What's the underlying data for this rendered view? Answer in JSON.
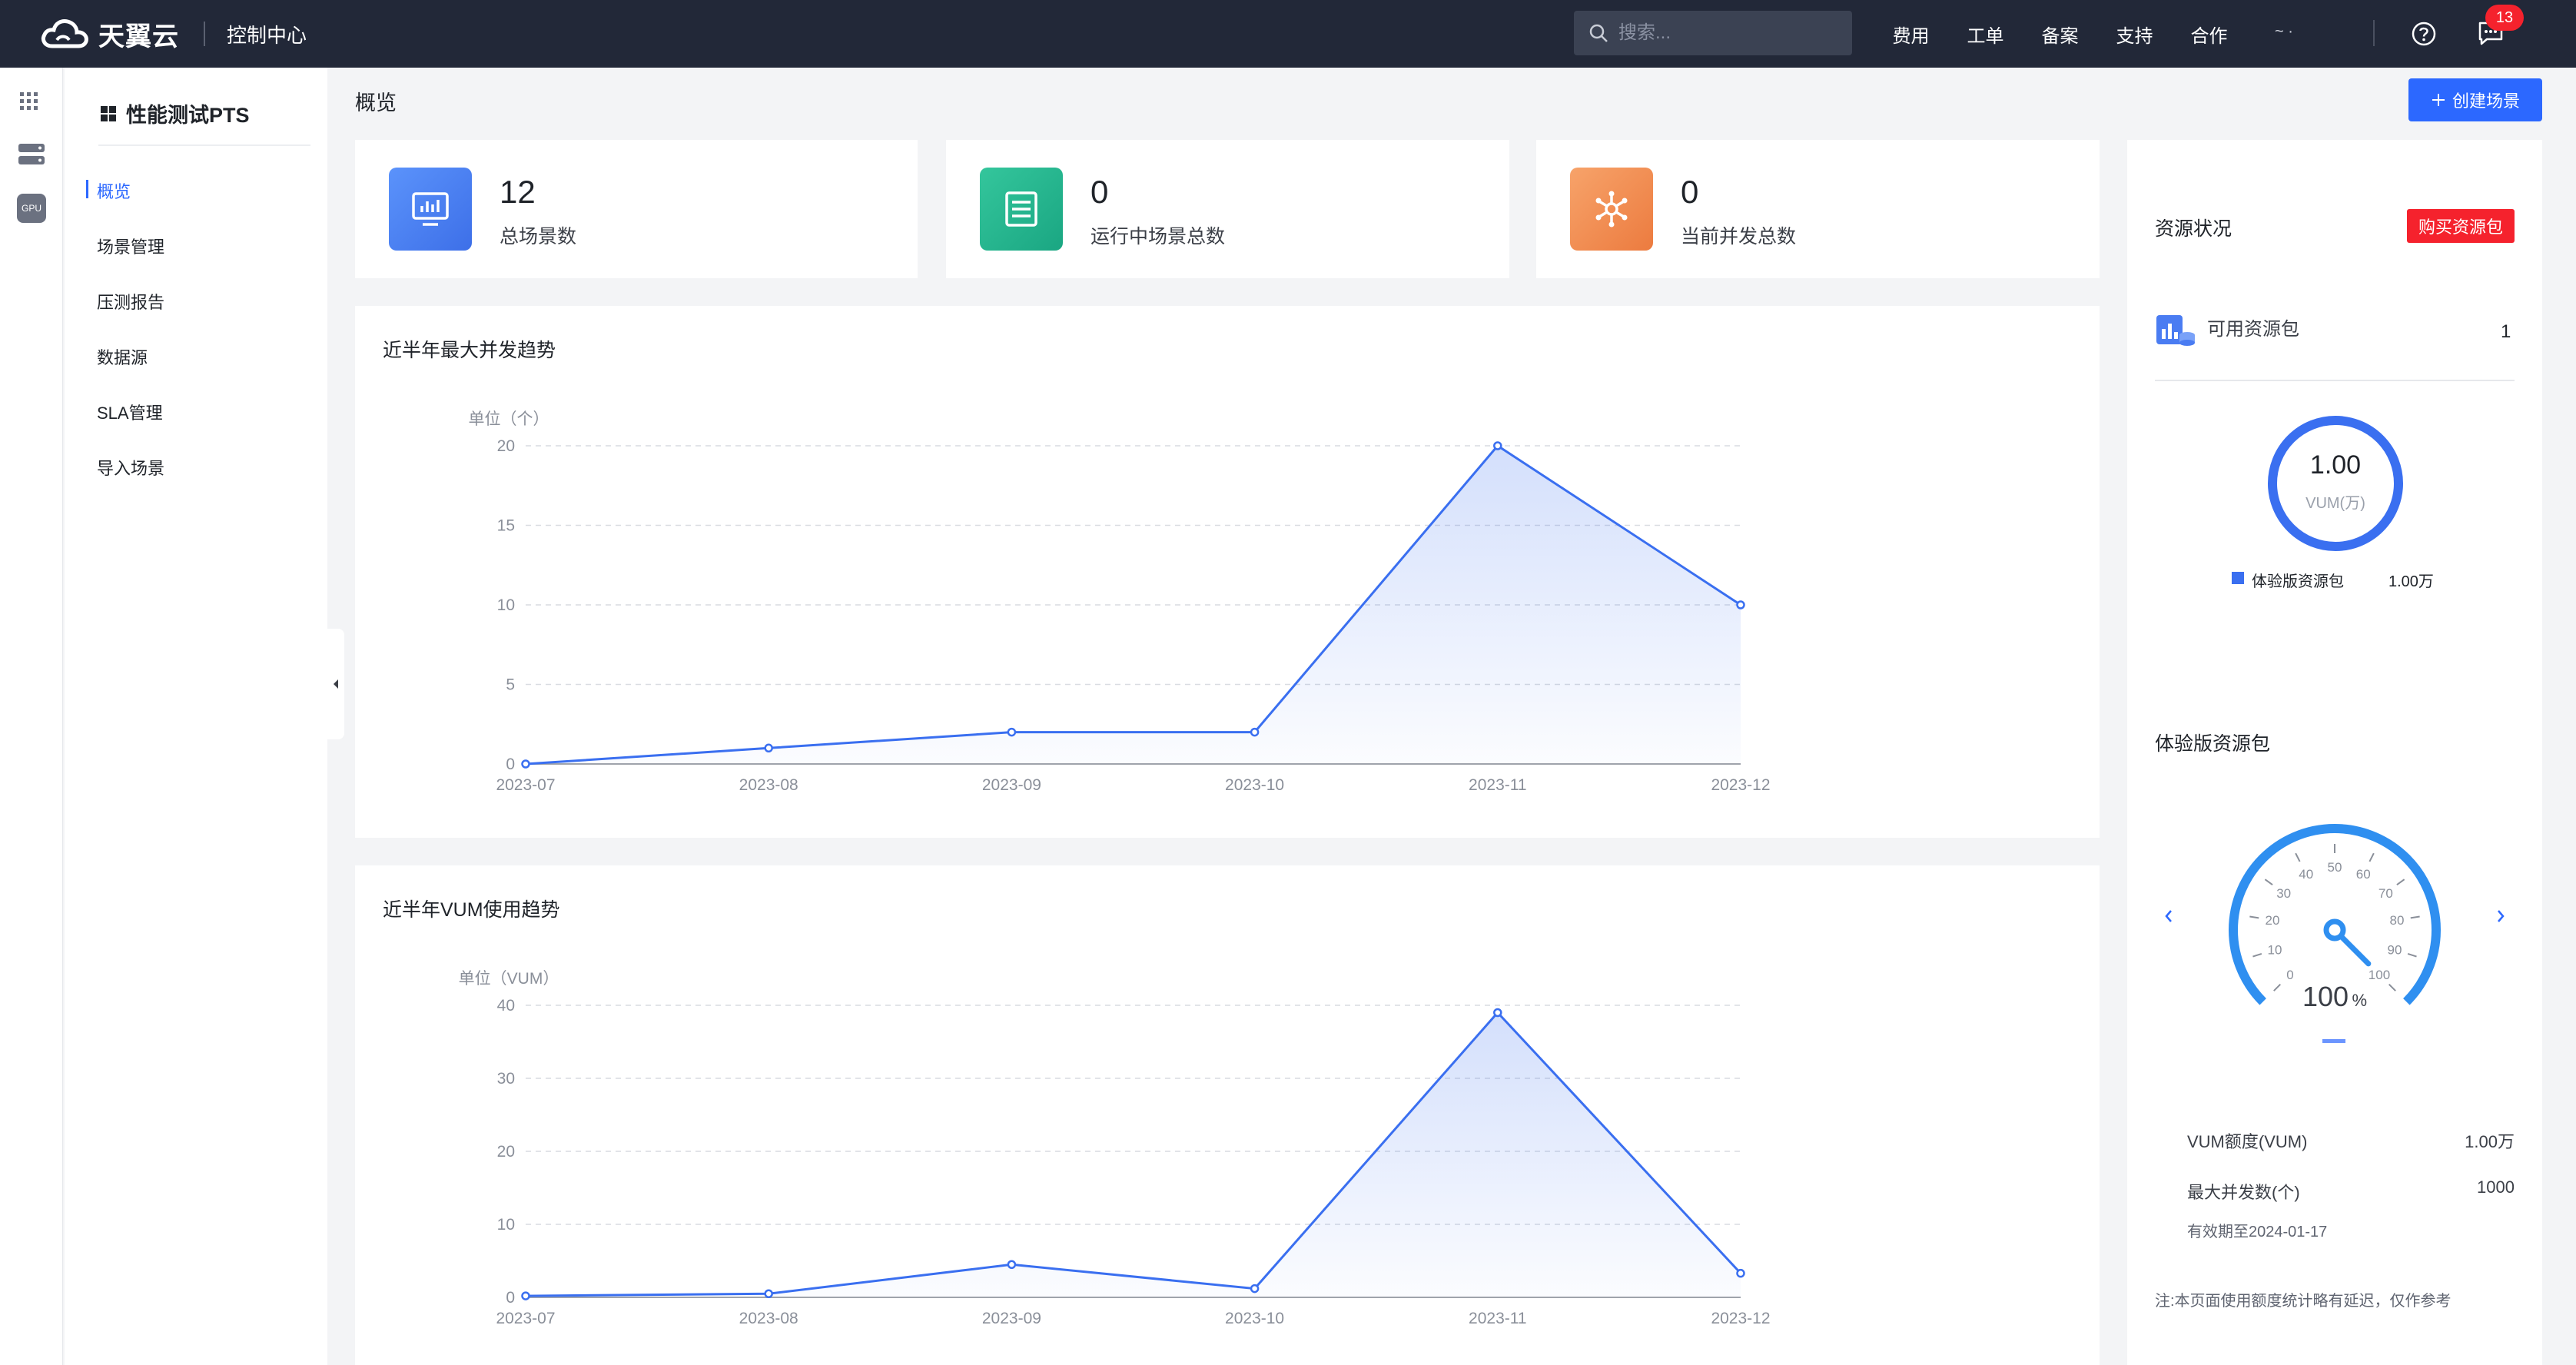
{
  "app": {
    "logo_text": "天翼云",
    "console_title": "控制中心"
  },
  "search": {
    "placeholder": "搜索..."
  },
  "top_nav": [
    "费用",
    "工单",
    "备案",
    "支持",
    "合作"
  ],
  "user_text": "~  ·",
  "notification_count": "13",
  "sidebar": {
    "title": "性能测试PTS",
    "items": [
      {
        "label": "概览",
        "active": true
      },
      {
        "label": "场景管理"
      },
      {
        "label": "压测报告"
      },
      {
        "label": "数据源"
      },
      {
        "label": "SLA管理"
      },
      {
        "label": "导入场景"
      }
    ]
  },
  "rail_icons": [
    "apps-grid-icon",
    "server-icon",
    "gpu-icon"
  ],
  "rail_gpu_label": "GPU",
  "page": {
    "title": "概览",
    "create_button": "创建场景"
  },
  "stats": [
    {
      "value": "12",
      "label": "总场景数",
      "icon": "monitor-icon",
      "color": "#3d7cf5"
    },
    {
      "value": "0",
      "label": "运行中场景总数",
      "icon": "server-list-icon",
      "color": "#1fb28d"
    },
    {
      "value": "0",
      "label": "当前并发总数",
      "icon": "network-icon",
      "color": "#f08a4b"
    }
  ],
  "charts": {
    "concurrency": {
      "title": "近半年最大并发趋势"
    },
    "vum": {
      "title": "近半年VUM使用趋势"
    }
  },
  "chart_data": [
    {
      "type": "area",
      "title": "近半年最大并发趋势",
      "ylabel": "单位（个）",
      "x": [
        "2023-07",
        "2023-08",
        "2023-09",
        "2023-10",
        "2023-11",
        "2023-12"
      ],
      "values": [
        0,
        1,
        2,
        2,
        20,
        10
      ],
      "yticks": [
        0,
        5,
        10,
        15,
        20
      ],
      "ylim": [
        0,
        20
      ],
      "grid": true,
      "color": "#3a6ff0"
    },
    {
      "type": "area",
      "title": "近半年VUM使用趋势",
      "ylabel": "单位（VUM）",
      "x": [
        "2023-07",
        "2023-08",
        "2023-09",
        "2023-10",
        "2023-11",
        "2023-12"
      ],
      "values": [
        0.2,
        0.5,
        4.5,
        1.2,
        39,
        3.3
      ],
      "yticks": [
        0,
        10,
        20,
        30,
        40
      ],
      "ylim": [
        0,
        40
      ],
      "grid": true,
      "color": "#3a6ff0"
    }
  ],
  "resource": {
    "title": "资源状况",
    "buy_button": "购买资源包",
    "available_label": "可用资源包",
    "available_count": "1",
    "ring_value": "1.00",
    "ring_unit": "VUM(万)",
    "legend_label": "体验版资源包",
    "legend_value": "1.00万",
    "legend_color": "#3a6ff0"
  },
  "trial": {
    "title": "体验版资源包",
    "gauge_ticks": [
      "0",
      "10",
      "20",
      "30",
      "40",
      "50",
      "60",
      "70",
      "80",
      "90",
      "100"
    ],
    "gauge_value": "100",
    "gauge_unit": "%",
    "gauge_percent": 100,
    "vum_label": "VUM额度(VUM)",
    "vum_value": "1.00万",
    "concurrency_label": "最大并发数(个)",
    "concurrency_value": "1000",
    "expiry": "有效期至2024-01-17",
    "note": "注:本页面使用额度统计略有延迟，仅作参考"
  }
}
